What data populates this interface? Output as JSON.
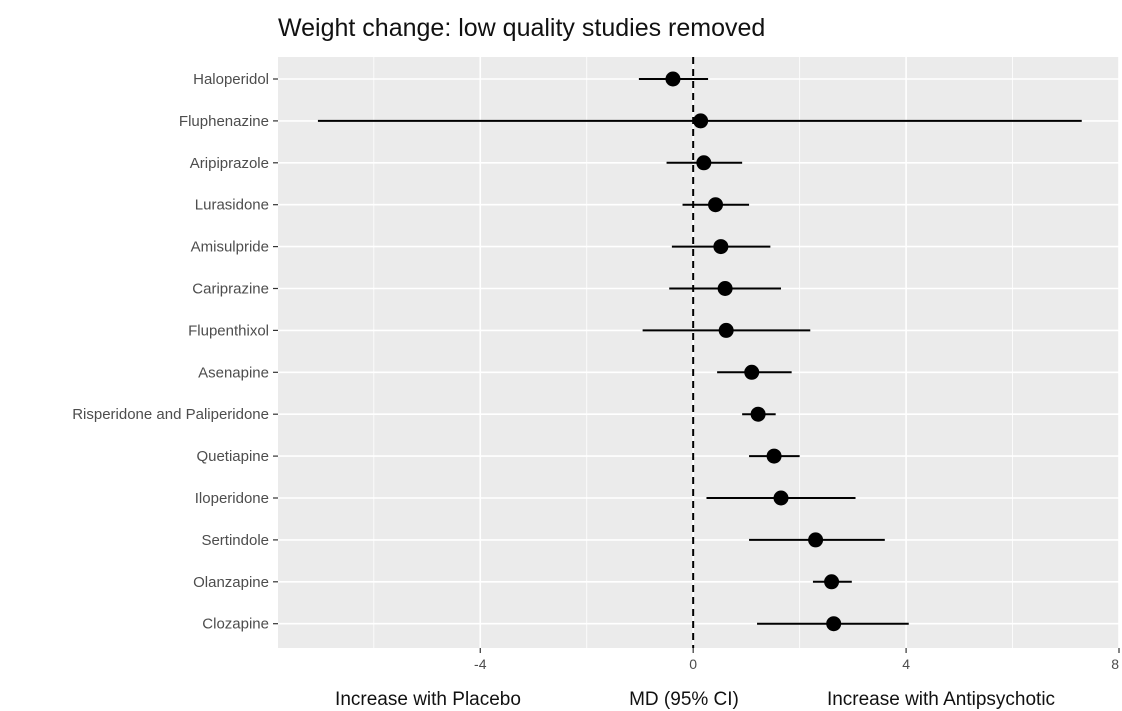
{
  "chart_data": {
    "type": "scatter",
    "title": "Weight change: low quality studies removed",
    "xlabel": "MD (95% CI)",
    "xlabel_left": "Increase with Placebo",
    "xlabel_right": "Increase with Antipsychotic",
    "ylabel": "",
    "xlim": [
      -7.8,
      8
    ],
    "xticks": [
      -4,
      0,
      4,
      8
    ],
    "xtick_labels": [
      "-4",
      "0",
      "4",
      "8"
    ],
    "reference_line": 0,
    "grid": true,
    "categories": [
      "Haloperidol",
      "Fluphenazine",
      "Aripiprazole",
      "Lurasidone",
      "Amisulpride",
      "Cariprazine",
      "Flupenthixol",
      "Asenapine",
      "Risperidone and Paliperidone",
      "Quetiapine",
      "Iloperidone",
      "Sertindole",
      "Olanzapine",
      "Clozapine"
    ],
    "estimates": [
      -0.38,
      0.14,
      0.2,
      0.42,
      0.52,
      0.6,
      0.62,
      1.1,
      1.22,
      1.52,
      1.65,
      2.3,
      2.6,
      2.64
    ],
    "ci_lower": [
      -1.02,
      -7.05,
      -0.5,
      -0.2,
      -0.4,
      -0.45,
      -0.95,
      0.45,
      0.92,
      1.05,
      0.25,
      1.05,
      2.25,
      1.2
    ],
    "ci_upper": [
      0.28,
      7.3,
      0.92,
      1.05,
      1.45,
      1.65,
      2.2,
      1.85,
      1.55,
      2.0,
      3.05,
      3.6,
      2.98,
      4.05
    ],
    "colors": {
      "panel_bg": "#ebebeb",
      "grid": "#ffffff",
      "point": "#000000",
      "ci_line": "#000000",
      "ref_line": "#000000"
    }
  }
}
